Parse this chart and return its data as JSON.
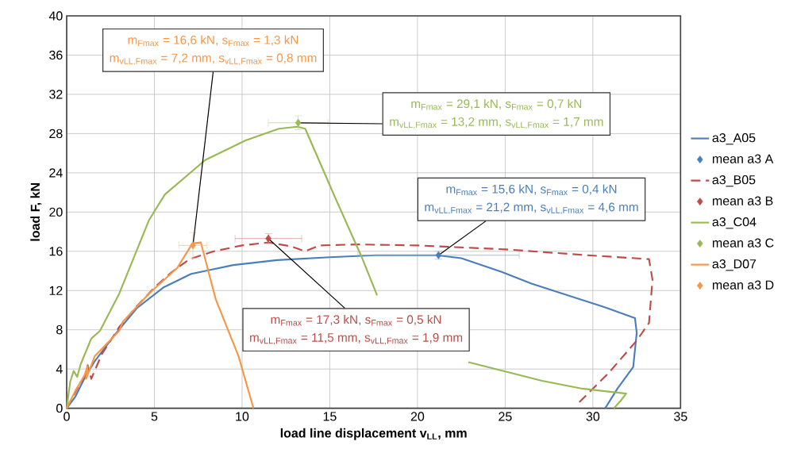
{
  "chart_data": {
    "type": "line",
    "xlabel": "**load line displacement v$_{LL}$, mm**",
    "ylabel": "**load F, kN**",
    "xlim": [
      0,
      35
    ],
    "xticks": [
      0,
      5,
      10,
      15,
      20,
      25,
      30,
      35
    ],
    "ylim": [
      0,
      40
    ],
    "yticks": [
      0,
      4,
      8,
      12,
      16,
      20,
      24,
      28,
      32,
      36,
      40
    ],
    "grid": true,
    "legend": "right",
    "series": [
      {
        "name": "a3_A05",
        "color": "#4a7ebb",
        "line_style": "solid",
        "x": [
          0,
          0.5,
          1.0,
          1.6,
          2.7,
          4.0,
          5.5,
          7.1,
          9.5,
          12.0,
          15.0,
          17.6,
          21.1,
          22.5,
          24.8,
          26.5,
          28.6,
          30.5,
          32.4,
          32.5,
          32.3,
          31.4,
          30.7
        ],
        "values": [
          0,
          1.2,
          3.0,
          4.8,
          7.4,
          10.2,
          12.3,
          13.7,
          14.6,
          15.1,
          15.4,
          15.6,
          15.6,
          15.3,
          13.9,
          12.7,
          11.5,
          10.4,
          9.2,
          7.7,
          4.2,
          2.0,
          0
        ]
      },
      {
        "name": "mean a3 A",
        "type": "scatter",
        "color": "#4a7ebb",
        "x": [
          21.2
        ],
        "marker": "diamond",
        "values": [
          15.6
        ],
        "errors": [
          0.4
        ],
        "xerrors": [
          4.6
        ]
      },
      {
        "name": "a3_B05",
        "color": "#be4b48",
        "line_style": "dashed",
        "x": [
          0,
          0.6,
          1.1,
          1.2,
          1.4,
          2.0,
          3.0,
          4.0,
          5.0,
          6.0,
          7.0,
          8.4,
          10.0,
          11.5,
          12.8,
          13.6,
          14.4,
          16.6,
          20.0,
          25.0,
          29.7,
          33.2,
          33.4,
          33.2,
          32.5,
          30.9,
          29.1
        ],
        "values": [
          0,
          2.0,
          3.5,
          4.4,
          3.0,
          5.5,
          8.3,
          10.4,
          12.3,
          13.9,
          15.2,
          16.0,
          16.6,
          16.9,
          16.5,
          16.0,
          16.6,
          16.7,
          16.6,
          16.2,
          15.6,
          15.2,
          13.1,
          8.7,
          6.9,
          3.6,
          0.4
        ]
      },
      {
        "name": "mean a3 B",
        "type": "scatter",
        "color": "#be4b48",
        "x": [
          11.5
        ],
        "marker": "diamond",
        "values": [
          17.3
        ],
        "errors": [
          0.5
        ],
        "xerrors": [
          1.9
        ]
      },
      {
        "name": "a3_C04",
        "color": "#98b954",
        "line_style": "solid",
        "x": [
          0,
          0.2,
          0.4,
          0.6,
          0.8,
          1.4,
          1.9,
          3.0,
          4.7,
          5.6,
          7.9,
          10.2,
          12.1,
          13.15,
          13.6,
          15.3,
          16.8,
          17.7,
          18.6,
          19.5,
          22.9,
          27.1,
          29.4,
          31.9,
          31.6,
          31.2
        ],
        "values": [
          0,
          2.7,
          3.8,
          3.2,
          4.5,
          7.1,
          7.9,
          11.7,
          19.2,
          21.8,
          25.3,
          27.3,
          28.5,
          28.7,
          28.5,
          21.5,
          15.5,
          11.5,
          null,
          null,
          4.7,
          2.8,
          2.0,
          1.5,
          0.8,
          0
        ]
      },
      {
        "name": "mean a3 C",
        "type": "scatter",
        "color": "#98b954",
        "x": [
          13.2
        ],
        "marker": "diamond",
        "values": [
          29.1
        ],
        "errors": [
          0.7
        ],
        "xerrors": [
          1.7
        ]
      },
      {
        "name": "a3_D07",
        "color": "#f79646",
        "line_style": "solid",
        "x": [
          0,
          0.5,
          1.0,
          1.2,
          1.1,
          1.6,
          3.0,
          3.2,
          4.7,
          6.3,
          7.17,
          7.65,
          8.5,
          9.8,
          10.65
        ],
        "values": [
          0,
          1.8,
          3.3,
          4.3,
          3.0,
          5.3,
          7.9,
          8.8,
          11.7,
          14.3,
          16.8,
          16.9,
          11.1,
          5.3,
          0
        ]
      },
      {
        "name": "mean a3 D",
        "type": "scatter",
        "color": "#f79646",
        "x": [
          7.2
        ],
        "marker": "diamond",
        "values": [
          16.6
        ],
        "errors": [
          1.3
        ],
        "xerrors": [
          0.8
        ]
      }
    ],
    "annotations": [
      "m$_{Fmax}$ = 16,6 kN, s$_{Fmax}$ = 1,3 kN",
      {
        "text": "m$_{vLL,Fmax}$ = 7,2 mm, s$_{vLL,Fmax}$ = 0,8 mm",
        "x": 7.2,
        "y": 16.6
      },
      "m$_{Fmax}$ = 29,1 kN, s$_{Fmax}$ = 0,7 kN",
      {
        "text": "m$_{vLL,Fmax}$ = 13,2 mm, s$_{vLL,Fmax}$ = 1,7 mm",
        "x": 13.2,
        "y": 29.1
      },
      "m$_{Fmax}$ = 15,6 kN, s$_{Fmax}$ = 0,4 kN",
      {
        "text": "m$_{vLL,Fmax}$ = 21,2 mm, s$_{vLL,Fmax}$ = 4,6 mm",
        "x": 21.2,
        "y": 15.6
      },
      {
        "text": "m$_{Fmax}$ = 17,3 kN, s$_{Fmax}$ = 0,5 kN",
        "x": 11.5,
        "y": 17.3
      },
      "m$_{vLL,Fmax}$ = 11,5 mm, s$_{vLL,Fmax}$ = 1,9 mm"
    ]
  }
}
